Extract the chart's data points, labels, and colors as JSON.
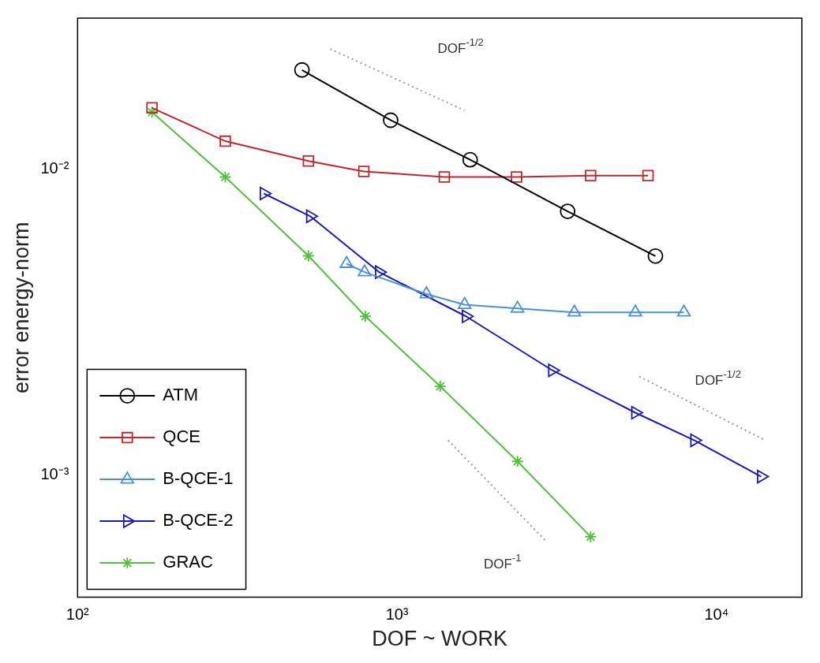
{
  "chart_data": {
    "type": "line",
    "xlabel": "DOF ~ WORK",
    "ylabel": "error energy-norm",
    "log": "xy",
    "grid": false,
    "legend": "bottom left",
    "xlim": [
      100,
      18500
    ],
    "ylim": [
      0.0004,
      0.031
    ],
    "xticks": [
      {
        "value": 100,
        "label": "10²"
      },
      {
        "value": 1000,
        "label": "10³"
      },
      {
        "value": 10000,
        "label": "10⁴"
      }
    ],
    "yticks": [
      {
        "value": 0.001,
        "label": "10⁻³"
      },
      {
        "value": 0.01,
        "label": "10⁻²"
      }
    ],
    "series": [
      {
        "name": "ATM",
        "color": "#000000",
        "marker": "circle",
        "x": [
          504,
          955,
          1694,
          3420,
          6440
        ],
        "values": [
          0.021,
          0.0144,
          0.0107,
          0.00726,
          0.00519
        ]
      },
      {
        "name": "QCE",
        "color": "#c0262d",
        "marker": "square",
        "x": [
          171,
          290,
          528,
          787,
          1406,
          2367,
          4036,
          6105
        ],
        "values": [
          0.0158,
          0.0123,
          0.0106,
          0.0098,
          0.0094,
          0.0094,
          0.0095,
          0.0095
        ]
      },
      {
        "name": "B-QCE-1",
        "color": "#4a90d9",
        "marker": "triangle",
        "x": [
          695,
          791,
          1236,
          1627,
          2383,
          3589,
          5572,
          7907
        ],
        "values": [
          0.0049,
          0.0046,
          0.0039,
          0.0036,
          0.0035,
          0.0034,
          0.0034,
          0.0034
        ]
      },
      {
        "name": "B-QCE-2",
        "color": "#1a1ab0",
        "marker": "triangle-right",
        "x": [
          383,
          535,
          879,
          1644,
          3062,
          5572,
          8531,
          13800
        ],
        "values": [
          0.0083,
          0.007,
          0.0046,
          0.0033,
          0.0022,
          0.0016,
          0.0013,
          0.00099
        ]
      },
      {
        "name": "GRAC",
        "color": "#4fc23a",
        "marker": "cross",
        "x": [
          171,
          290,
          528,
          796,
          1365,
          2383,
          4036
        ],
        "values": [
          0.0153,
          0.0094,
          0.0052,
          0.0033,
          0.00195,
          0.00111,
          0.00063
        ]
      },
      {
        "color": "#999999",
        "marker": "none",
        "line_style": "dotted",
        "x": [
          618,
          1627
        ],
        "values": [
          0.0246,
          0.0155
        ]
      },
      {
        "color": "#999999",
        "marker": "none",
        "line_style": "dotted",
        "x": [
          5729,
          14220
        ],
        "values": [
          0.0021,
          0.0013
        ]
      },
      {
        "color": "#999999",
        "marker": "none",
        "line_style": "dotted",
        "x": [
          1445,
          2924
        ],
        "values": [
          0.0013,
          0.00061
        ]
      }
    ],
    "annotations": [
      "DOF$^{-1/2}$",
      "DOF$^{-1/2}$",
      "DOF$^{-1}$"
    ]
  }
}
